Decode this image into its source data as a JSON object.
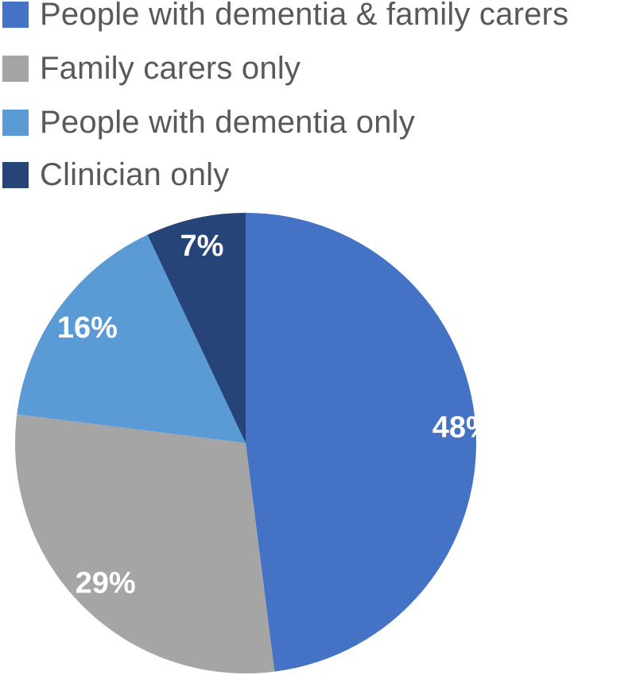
{
  "chart_data": {
    "type": "pie",
    "title": "",
    "legend_position": "top-left",
    "slices": [
      {
        "label": "People with dementia & family carers",
        "value": 48,
        "display": "48%",
        "color": "#4472C4"
      },
      {
        "label": "Family carers only",
        "value": 29,
        "display": "29%",
        "color": "#A5A5A5"
      },
      {
        "label": "People with dementia only",
        "value": 16,
        "display": "16%",
        "color": "#5B9BD5"
      },
      {
        "label": "Clinician only",
        "value": 7,
        "display": "7%",
        "color": "#264478"
      }
    ]
  }
}
